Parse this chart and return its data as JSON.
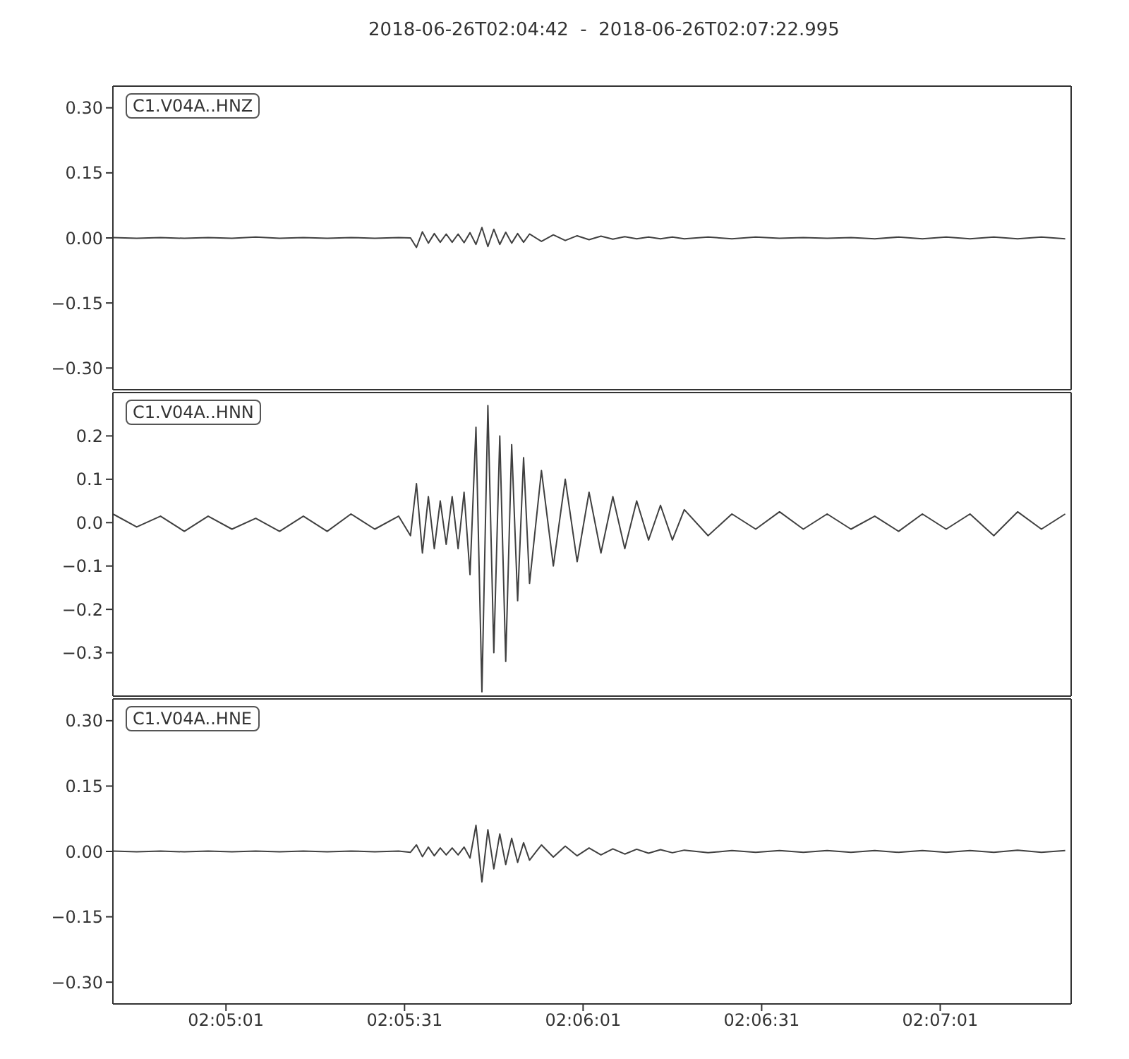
{
  "chart_data": [
    {
      "type": "line",
      "title": "2018-06-26T02:04:42  -  2018-06-26T02:07:22.995",
      "annotations": [
        "C1.V04A..HNZ"
      ],
      "tick_labels": "y",
      "x": [
        "2018-06-26T02:04:42",
        "2018-06-26T02:04:46",
        "2018-06-26T02:04:50",
        "2018-06-26T02:04:54",
        "2018-06-26T02:04:58",
        "2018-06-26T02:05:02",
        "2018-06-26T02:05:06",
        "2018-06-26T02:05:10",
        "2018-06-26T02:05:14",
        "2018-06-26T02:05:18",
        "2018-06-26T02:05:22",
        "2018-06-26T02:05:26",
        "2018-06-26T02:05:30",
        "2018-06-26T02:05:32",
        "2018-06-26T02:05:33",
        "2018-06-26T02:05:34",
        "2018-06-26T02:05:35",
        "2018-06-26T02:05:36",
        "2018-06-26T02:05:37",
        "2018-06-26T02:05:38",
        "2018-06-26T02:05:39",
        "2018-06-26T02:05:40",
        "2018-06-26T02:05:41",
        "2018-06-26T02:05:42",
        "2018-06-26T02:05:43",
        "2018-06-26T02:05:44",
        "2018-06-26T02:05:45",
        "2018-06-26T02:05:46",
        "2018-06-26T02:05:47",
        "2018-06-26T02:05:48",
        "2018-06-26T02:05:49",
        "2018-06-26T02:05:50",
        "2018-06-26T02:05:51",
        "2018-06-26T02:05:52",
        "2018-06-26T02:05:54",
        "2018-06-26T02:05:56",
        "2018-06-26T02:05:58",
        "2018-06-26T02:06:00",
        "2018-06-26T02:06:02",
        "2018-06-26T02:06:04",
        "2018-06-26T02:06:06",
        "2018-06-26T02:06:08",
        "2018-06-26T02:06:10",
        "2018-06-26T02:06:12",
        "2018-06-26T02:06:14",
        "2018-06-26T02:06:16",
        "2018-06-26T02:06:18",
        "2018-06-26T02:06:22",
        "2018-06-26T02:06:26",
        "2018-06-26T02:06:30",
        "2018-06-26T02:06:34",
        "2018-06-26T02:06:38",
        "2018-06-26T02:06:42",
        "2018-06-26T02:06:46",
        "2018-06-26T02:06:50",
        "2018-06-26T02:06:54",
        "2018-06-26T02:06:58",
        "2018-06-26T02:07:02",
        "2018-06-26T02:07:06",
        "2018-06-26T02:07:10",
        "2018-06-26T02:07:14",
        "2018-06-26T02:07:18",
        "2018-06-26T02:07:22"
      ],
      "series": [
        {
          "color": "#404040",
          "values": [
            0.001,
            -0.001,
            0.001,
            -0.001,
            0.001,
            -0.001,
            0.002,
            -0.001,
            0.001,
            -0.001,
            0.001,
            -0.001,
            0.001,
            0,
            -0.022,
            0.014,
            -0.012,
            0.01,
            -0.01,
            0.009,
            -0.01,
            0.009,
            -0.011,
            0.012,
            -0.015,
            0.024,
            -0.02,
            0.02,
            -0.015,
            0.013,
            -0.012,
            0.01,
            -0.01,
            0.009,
            -0.008,
            0.007,
            -0.006,
            0.005,
            -0.004,
            0.004,
            -0.003,
            0.003,
            -0.002,
            0.002,
            -0.002,
            0.002,
            -0.002,
            0.002,
            -0.002,
            0.002,
            -0.001,
            0.001,
            -0.001,
            0.001,
            -0.002,
            0.002,
            -0.002,
            0.002,
            -0.002,
            0.002,
            -0.002,
            0.002,
            -0.002
          ]
        }
      ],
      "xlim": [
        "2018-06-26T02:04:42",
        "2018-06-26T02:07:22.995"
      ],
      "xticks": [
        {
          "value": "2018-06-26T02:05:01",
          "label": null
        },
        {
          "value": "2018-06-26T02:05:31",
          "label": null
        },
        {
          "value": "2018-06-26T02:06:01",
          "label": null
        },
        {
          "value": "2018-06-26T02:06:31",
          "label": null
        },
        {
          "value": "2018-06-26T02:07:01",
          "label": null
        }
      ],
      "ylim": [
        -0.35,
        0.35
      ],
      "yticks": [
        {
          "value": -0.3,
          "label": "−0.30"
        },
        {
          "value": -0.15,
          "label": "−0.15"
        },
        {
          "value": 0,
          "label": "0.00"
        },
        {
          "value": 0.15,
          "label": "0.15"
        },
        {
          "value": 0.3,
          "label": "0.30"
        }
      ]
    },
    {
      "type": "line",
      "annotations": [
        "C1.V04A..HNN"
      ],
      "tick_labels": "y",
      "x": [
        "2018-06-26T02:04:42",
        "2018-06-26T02:04:46",
        "2018-06-26T02:04:50",
        "2018-06-26T02:04:54",
        "2018-06-26T02:04:58",
        "2018-06-26T02:05:02",
        "2018-06-26T02:05:06",
        "2018-06-26T02:05:10",
        "2018-06-26T02:05:14",
        "2018-06-26T02:05:18",
        "2018-06-26T02:05:22",
        "2018-06-26T02:05:26",
        "2018-06-26T02:05:30",
        "2018-06-26T02:05:32",
        "2018-06-26T02:05:33",
        "2018-06-26T02:05:34",
        "2018-06-26T02:05:35",
        "2018-06-26T02:05:36",
        "2018-06-26T02:05:37",
        "2018-06-26T02:05:38",
        "2018-06-26T02:05:39",
        "2018-06-26T02:05:40",
        "2018-06-26T02:05:41",
        "2018-06-26T02:05:42",
        "2018-06-26T02:05:43",
        "2018-06-26T02:05:44",
        "2018-06-26T02:05:45",
        "2018-06-26T02:05:46",
        "2018-06-26T02:05:47",
        "2018-06-26T02:05:48",
        "2018-06-26T02:05:49",
        "2018-06-26T02:05:50",
        "2018-06-26T02:05:51",
        "2018-06-26T02:05:52",
        "2018-06-26T02:05:54",
        "2018-06-26T02:05:56",
        "2018-06-26T02:05:58",
        "2018-06-26T02:06:00",
        "2018-06-26T02:06:02",
        "2018-06-26T02:06:04",
        "2018-06-26T02:06:06",
        "2018-06-26T02:06:08",
        "2018-06-26T02:06:10",
        "2018-06-26T02:06:12",
        "2018-06-26T02:06:14",
        "2018-06-26T02:06:16",
        "2018-06-26T02:06:18",
        "2018-06-26T02:06:22",
        "2018-06-26T02:06:26",
        "2018-06-26T02:06:30",
        "2018-06-26T02:06:34",
        "2018-06-26T02:06:38",
        "2018-06-26T02:06:42",
        "2018-06-26T02:06:46",
        "2018-06-26T02:06:50",
        "2018-06-26T02:06:54",
        "2018-06-26T02:06:58",
        "2018-06-26T02:07:02",
        "2018-06-26T02:07:06",
        "2018-06-26T02:07:10",
        "2018-06-26T02:07:14",
        "2018-06-26T02:07:18",
        "2018-06-26T02:07:22"
      ],
      "series": [
        {
          "color": "#404040",
          "values": [
            0.02,
            -0.01,
            0.015,
            -0.02,
            0.015,
            -0.015,
            0.01,
            -0.02,
            0.015,
            -0.02,
            0.02,
            -0.015,
            0.015,
            -0.03,
            0.09,
            -0.07,
            0.06,
            -0.06,
            0.05,
            -0.05,
            0.06,
            -0.06,
            0.07,
            -0.12,
            0.22,
            -0.39,
            0.27,
            -0.3,
            0.2,
            -0.32,
            0.18,
            -0.18,
            0.15,
            -0.14,
            0.12,
            -0.1,
            0.1,
            -0.09,
            0.07,
            -0.07,
            0.06,
            -0.06,
            0.05,
            -0.04,
            0.04,
            -0.04,
            0.03,
            -0.03,
            0.02,
            -0.015,
            0.025,
            -0.015,
            0.02,
            -0.015,
            0.015,
            -0.02,
            0.02,
            -0.015,
            0.02,
            -0.03,
            0.025,
            -0.015,
            0.02
          ]
        }
      ],
      "xlim": [
        "2018-06-26T02:04:42",
        "2018-06-26T02:07:22.995"
      ],
      "xticks": [
        {
          "value": "2018-06-26T02:05:01",
          "label": null
        },
        {
          "value": "2018-06-26T02:05:31",
          "label": null
        },
        {
          "value": "2018-06-26T02:06:01",
          "label": null
        },
        {
          "value": "2018-06-26T02:06:31",
          "label": null
        },
        {
          "value": "2018-06-26T02:07:01",
          "label": null
        }
      ],
      "ylim": [
        -0.4,
        0.3
      ],
      "yticks": [
        {
          "value": -0.3,
          "label": "−0.3"
        },
        {
          "value": -0.2,
          "label": "−0.2"
        },
        {
          "value": -0.1,
          "label": "−0.1"
        },
        {
          "value": 0,
          "label": "0.0"
        },
        0.1,
        0.2
      ]
    },
    {
      "type": "line",
      "annotations": [
        "C1.V04A..HNE"
      ],
      "x": [
        "2018-06-26T02:04:42",
        "2018-06-26T02:04:46",
        "2018-06-26T02:04:50",
        "2018-06-26T02:04:54",
        "2018-06-26T02:04:58",
        "2018-06-26T02:05:02",
        "2018-06-26T02:05:06",
        "2018-06-26T02:05:10",
        "2018-06-26T02:05:14",
        "2018-06-26T02:05:18",
        "2018-06-26T02:05:22",
        "2018-06-26T02:05:26",
        "2018-06-26T02:05:30",
        "2018-06-26T02:05:32",
        "2018-06-26T02:05:33",
        "2018-06-26T02:05:34",
        "2018-06-26T02:05:35",
        "2018-06-26T02:05:36",
        "2018-06-26T02:05:37",
        "2018-06-26T02:05:38",
        "2018-06-26T02:05:39",
        "2018-06-26T02:05:40",
        "2018-06-26T02:05:41",
        "2018-06-26T02:05:42",
        "2018-06-26T02:05:43",
        "2018-06-26T02:05:44",
        "2018-06-26T02:05:45",
        "2018-06-26T02:05:46",
        "2018-06-26T02:05:47",
        "2018-06-26T02:05:48",
        "2018-06-26T02:05:49",
        "2018-06-26T02:05:50",
        "2018-06-26T02:05:51",
        "2018-06-26T02:05:52",
        "2018-06-26T02:05:54",
        "2018-06-26T02:05:56",
        "2018-06-26T02:05:58",
        "2018-06-26T02:06:00",
        "2018-06-26T02:06:02",
        "2018-06-26T02:06:04",
        "2018-06-26T02:06:06",
        "2018-06-26T02:06:08",
        "2018-06-26T02:06:10",
        "2018-06-26T02:06:12",
        "2018-06-26T02:06:14",
        "2018-06-26T02:06:16",
        "2018-06-26T02:06:18",
        "2018-06-26T02:06:22",
        "2018-06-26T02:06:26",
        "2018-06-26T02:06:30",
        "2018-06-26T02:06:34",
        "2018-06-26T02:06:38",
        "2018-06-26T02:06:42",
        "2018-06-26T02:06:46",
        "2018-06-26T02:06:50",
        "2018-06-26T02:06:54",
        "2018-06-26T02:06:58",
        "2018-06-26T02:07:02",
        "2018-06-26T02:07:06",
        "2018-06-26T02:07:10",
        "2018-06-26T02:07:14",
        "2018-06-26T02:07:18",
        "2018-06-26T02:07:22"
      ],
      "series": [
        {
          "color": "#404040",
          "values": [
            0.001,
            -0.001,
            0.001,
            -0.001,
            0.001,
            -0.001,
            0.001,
            -0.001,
            0.001,
            -0.001,
            0.001,
            -0.001,
            0.001,
            -0.002,
            0.015,
            -0.012,
            0.01,
            -0.01,
            0.008,
            -0.008,
            0.008,
            -0.008,
            0.01,
            -0.015,
            0.06,
            -0.07,
            0.05,
            -0.04,
            0.04,
            -0.03,
            0.03,
            -0.025,
            0.02,
            -0.02,
            0.015,
            -0.013,
            0.012,
            -0.01,
            0.008,
            -0.008,
            0.006,
            -0.006,
            0.005,
            -0.004,
            0.004,
            -0.003,
            0.003,
            -0.003,
            0.002,
            -0.002,
            0.002,
            -0.002,
            0.002,
            -0.002,
            0.002,
            -0.002,
            0.002,
            -0.002,
            0.002,
            -0.002,
            0.003,
            -0.002,
            0.002
          ]
        }
      ],
      "xlim": [
        "2018-06-26T02:04:42",
        "2018-06-26T02:07:22.995"
      ],
      "xticks": [
        {
          "value": "2018-06-26T02:05:01",
          "label": "02:05:01"
        },
        {
          "value": "2018-06-26T02:05:31",
          "label": "02:05:31"
        },
        {
          "value": "2018-06-26T02:06:01",
          "label": "02:06:01"
        },
        {
          "value": "2018-06-26T02:06:31",
          "label": "02:06:31"
        },
        {
          "value": "2018-06-26T02:07:01",
          "label": "02:07:01"
        }
      ],
      "ylim": [
        -0.35,
        0.35
      ],
      "yticks": [
        {
          "value": -0.3,
          "label": "−0.30"
        },
        {
          "value": -0.15,
          "label": "−0.15"
        },
        {
          "value": 0,
          "label": "0.00"
        },
        {
          "value": 0.15,
          "label": "0.15"
        },
        {
          "value": 0.3,
          "label": "0.30"
        }
      ]
    }
  ]
}
